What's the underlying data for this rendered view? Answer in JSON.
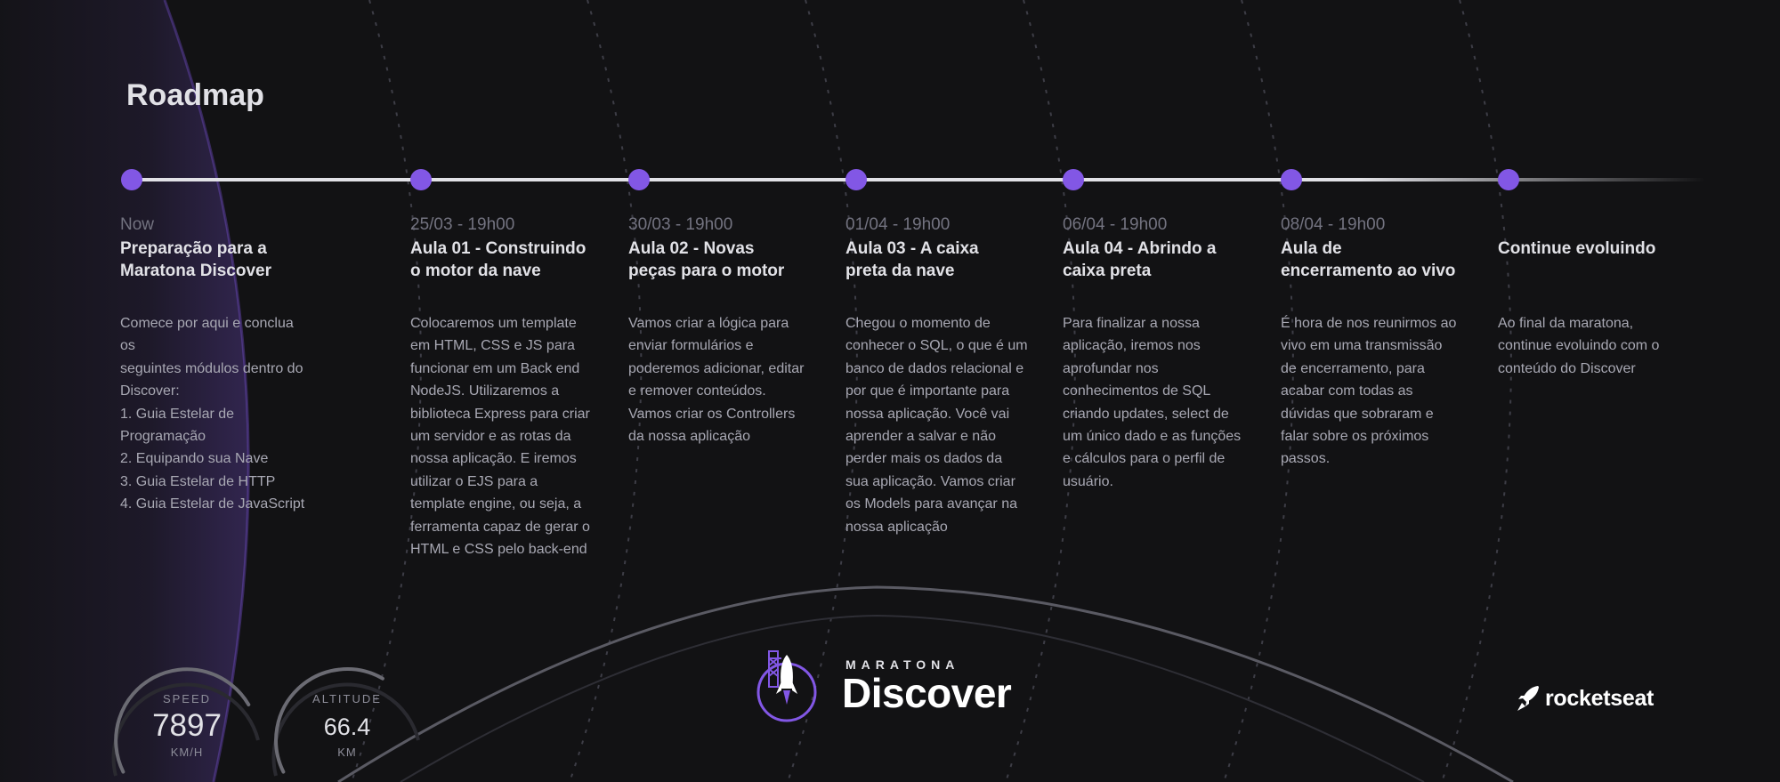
{
  "page": {
    "title": "Roadmap"
  },
  "roadmap": {
    "steps": [
      {
        "date": "Now",
        "title_line1": "Preparação para a",
        "title_line2": "Maratona Discover",
        "description": [
          "Comece por aqui e conclua os",
          "seguintes módulos dentro do",
          "Discover:",
          "1. Guia Estelar de Programação",
          "2. Equipando sua Nave",
          "3. Guia Estelar de HTTP",
          "4. Guia Estelar de JavaScript"
        ]
      },
      {
        "date": "25/03 - 19h00",
        "title_line1": "Aula 01 - Construindo",
        "title_line2": "o motor da nave",
        "description": [
          "Colocaremos um template",
          "em HTML, CSS e JS para",
          "funcionar em um Back end",
          "NodeJS. Utilizaremos a",
          "biblioteca Express para criar",
          "um servidor e as rotas da",
          "nossa aplicação. E iremos",
          "utilizar o EJS para a",
          "template engine, ou seja, a",
          "ferramenta capaz de gerar o",
          "HTML e CSS pelo back-end"
        ]
      },
      {
        "date": "30/03 - 19h00",
        "title_line1": "Aula 02 - Novas",
        "title_line2": "peças para o motor",
        "description": [
          "Vamos criar a lógica para",
          "enviar formulários e",
          "poderemos adicionar, editar",
          "e remover conteúdos.",
          "Vamos criar os Controllers",
          "da nossa aplicação"
        ]
      },
      {
        "date": "01/04 - 19h00",
        "title_line1": "Aula 03 - A caixa",
        "title_line2": "preta da nave",
        "description": [
          "Chegou o momento de",
          "conhecer o SQL, o que é um",
          "banco de dados relacional e",
          "por que é importante para",
          "nossa aplicação. Você vai",
          "aprender a salvar e não",
          "perder mais os dados da",
          "sua aplicação. Vamos criar",
          "os Models para avançar na",
          "nossa aplicação"
        ]
      },
      {
        "date": "06/04 - 19h00",
        "title_line1": "Aula 04 - Abrindo a",
        "title_line2": "caixa preta",
        "description": [
          "Para finalizar a nossa",
          "aplicação, iremos nos",
          "aprofundar nos",
          "conhecimentos de SQL",
          "criando updates, select de",
          "um único dado e as funções",
          "e cálculos para o perfil de",
          "usuário."
        ]
      },
      {
        "date": "08/04 - 19h00",
        "title_line1": "Aula de",
        "title_line2": "encerramento ao vivo",
        "description": [
          "É hora de nos reunirmos ao",
          "vivo em uma transmissão",
          "de encerramento, para",
          "acabar com todas as",
          "dúvidas que sobraram e",
          "falar sobre os próximos",
          "passos."
        ]
      },
      {
        "date": "",
        "title_line1": "Continue evoluindo",
        "title_line2": "",
        "description": [
          "Ao final da maratona,",
          "continue evoluindo com o",
          "conteúdo do Discover"
        ]
      }
    ]
  },
  "gauges": {
    "speed": {
      "label": "SPEED",
      "value": "7897",
      "unit": "KM/H",
      "level": 0.33
    },
    "altitude": {
      "label": "ALTITUDE",
      "value": "66.4",
      "unit": "KM",
      "level": 0.18
    }
  },
  "brand": {
    "subtitle": "MARATONA",
    "name": "Discover",
    "partner": "rocketseat",
    "icon": "rocket-icon"
  },
  "colors": {
    "background": "#121214",
    "accent": "#8257e5",
    "text": "#e1e1e6",
    "muted": "#a8a8b3"
  }
}
